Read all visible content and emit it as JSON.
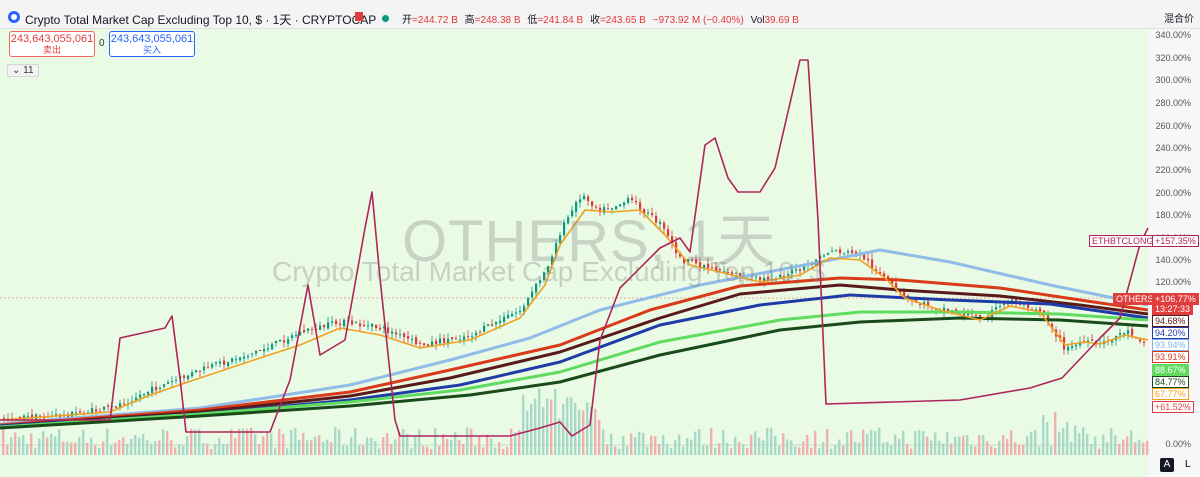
{
  "header": {
    "title": "Crypto Total Market Cap Excluding Top 10, $ · 1天 · CRYPTOCAP",
    "ohlc": [
      {
        "label": "开",
        "value": "=244.72 B"
      },
      {
        "label": "高",
        "value": "=248.38 B"
      },
      {
        "label": "低",
        "value": "=241.84 B"
      },
      {
        "label": "收",
        "value": "=243.65 B"
      },
      {
        "label": "",
        "value": "−973.92 M (−0.40%)"
      },
      {
        "label": "Vol",
        "value": "39.69 B"
      }
    ],
    "mix_button": "混合价"
  },
  "trade": {
    "sell_price": "243,643,055,061",
    "sell_label": "卖出",
    "spread": "0",
    "buy_price": "243,643,055,061",
    "buy_label": "买入"
  },
  "indicators_toggle": "11",
  "watermark": {
    "symbol": "OTHERS, 1天",
    "name": "Crypto Total Market Cap Excluding Top 10, $"
  },
  "axis": {
    "ticks": [
      "340.00%",
      "320.00%",
      "300.00%",
      "280.00%",
      "260.00%",
      "240.00%",
      "220.00%",
      "200.00%",
      "180.00%",
      "160.00%",
      "140.00%",
      "120.00%",
      "100.00%",
      "0.00%"
    ],
    "tags": [
      {
        "text": "ETHBTCLONGS",
        "color": "#b0245c"
      },
      {
        "text": "+157.35%",
        "color": "#b0245c"
      },
      {
        "text": "OTHERS",
        "color": "#e03e3e"
      },
      {
        "text": "+106.77%",
        "color": "#e03e3e"
      },
      {
        "text": "13:27:33",
        "color": "#e03e3e"
      },
      {
        "text": "94.68%",
        "color": "#5a1a1a"
      },
      {
        "text": "94.20%",
        "color": "#1e3ba8"
      },
      {
        "text": "93.94%",
        "color": "#7fb2e8"
      },
      {
        "text": "93.91%",
        "color": "#d93a1a"
      },
      {
        "text": "88.67%",
        "color": "#5fdc5f"
      },
      {
        "text": "84.77%",
        "color": "#1a4a1a"
      },
      {
        "text": "67.77%",
        "color": "#f0a020"
      },
      {
        "text": "+61.52%",
        "color": "#e03e3e"
      }
    ]
  },
  "bottom": {
    "auto_label": "A",
    "log_label": "L"
  },
  "colors": {
    "up": "#089981",
    "down": "#e23838",
    "ema_orange": "#f0a020",
    "ma_lightblue": "#90bce8",
    "ma_red": "#d93a1a",
    "ma_darkred": "#5a1a1a",
    "ma_blue": "#1e3ba8",
    "ma_lightgreen": "#5fdc5f",
    "ma_darkgreen": "#1a4a1a",
    "ethbtc_line": "#b0245c"
  }
}
